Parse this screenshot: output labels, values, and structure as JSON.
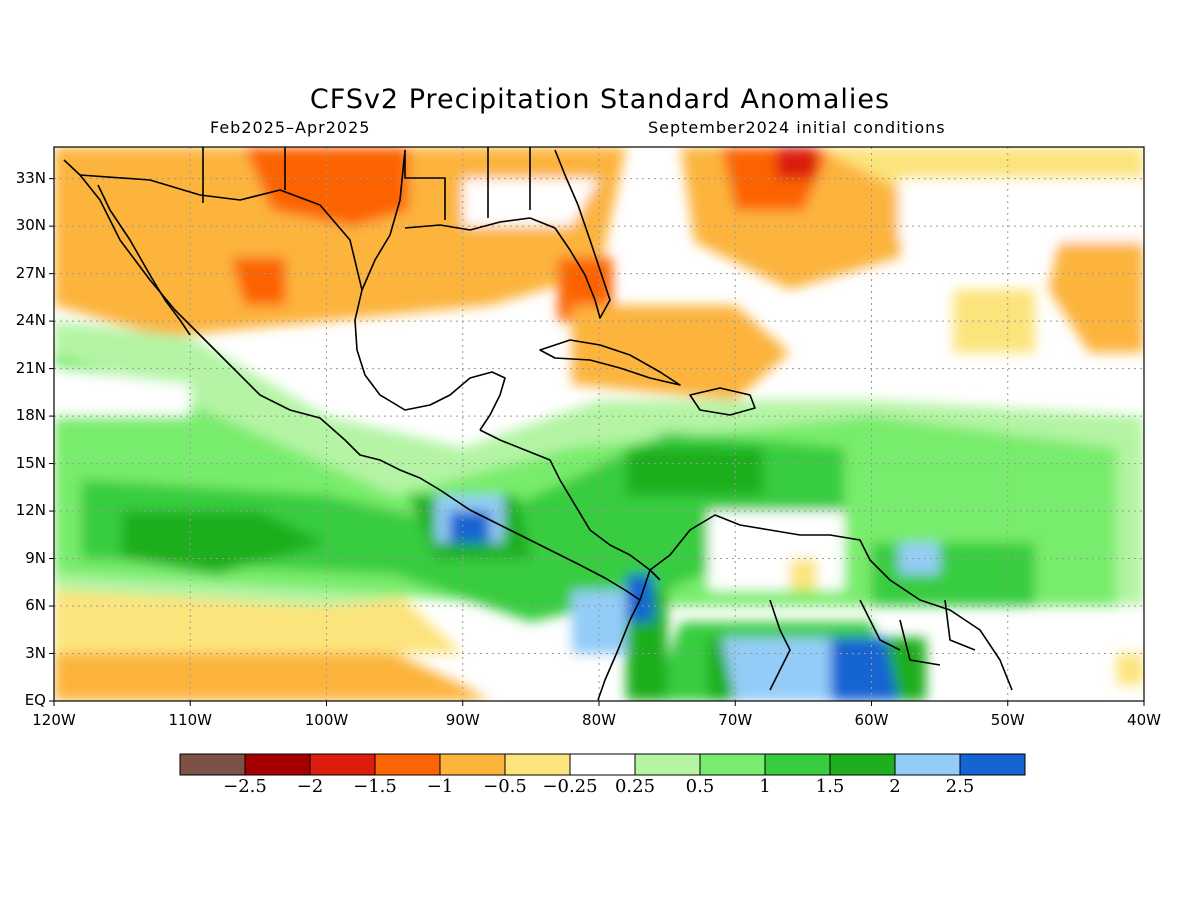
{
  "title": "CFSv2 Precipitation Standard Anomalies",
  "subtitle_left": "Feb2025–Apr2025",
  "subtitle_right": "September2024 initial conditions",
  "map": {
    "lon_range": [
      -120,
      -40
    ],
    "lat_range": [
      0,
      35
    ],
    "lat_ticks": [
      "EQ",
      "3N",
      "6N",
      "9N",
      "12N",
      "15N",
      "18N",
      "21N",
      "24N",
      "27N",
      "30N",
      "33N"
    ],
    "lon_ticks": [
      "120W",
      "110W",
      "100W",
      "90W",
      "80W",
      "70W",
      "60W",
      "50W",
      "40W"
    ],
    "grid": true
  },
  "colorbar": {
    "colors": [
      "#7d5146",
      "#a40000",
      "#dc1c0c",
      "#fc6404",
      "#fcb43c",
      "#fce47c",
      "#ffffff",
      "#b4f4a4",
      "#78ec6c",
      "#38cc40",
      "#1eae1e",
      "#94ccf8",
      "#1464d2"
    ],
    "labels": [
      "−2.5",
      "−2",
      "−1.5",
      "−1",
      "−0.5",
      "−0.25",
      "0.25",
      "0.5",
      "1",
      "1.5",
      "2",
      "2.5"
    ]
  }
}
